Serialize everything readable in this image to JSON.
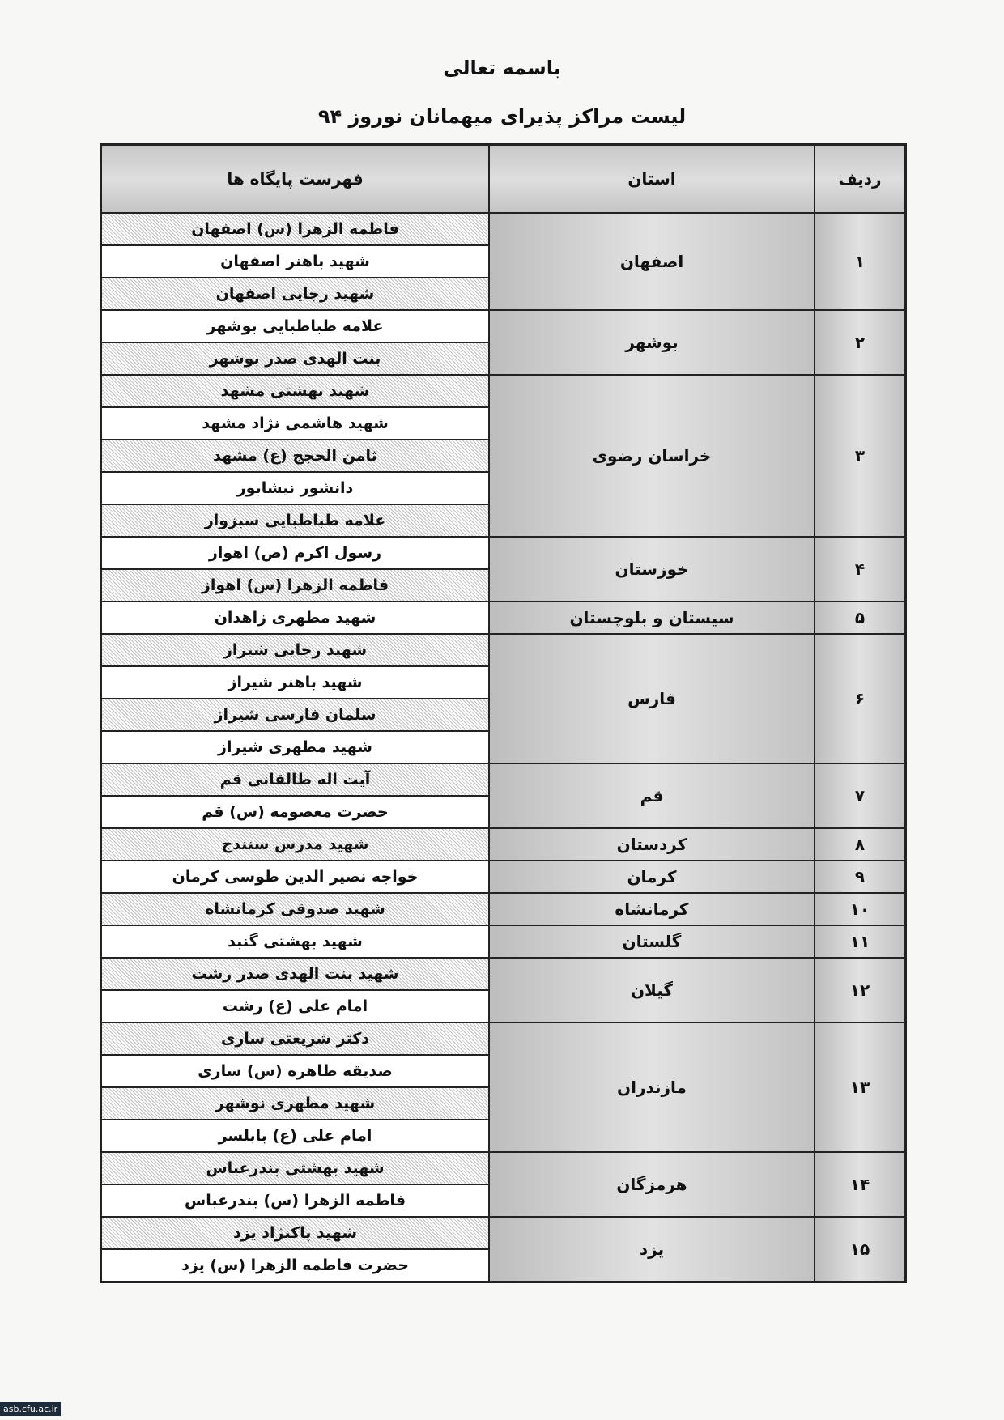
{
  "header": {
    "bismillah": "باسمه تعالی",
    "title": "لیست مراکز پذیرای میهمانان نوروز ۹۴"
  },
  "table": {
    "columns": {
      "radif": "ردیف",
      "province": "استان",
      "sites": "فهرست پایگاه ها"
    },
    "groups": [
      {
        "radif": "۱",
        "province": "اصفهان",
        "sites": [
          {
            "name": "فاطمه الزهرا (س) اصفهان",
            "shaded": true
          },
          {
            "name": "شهید باهنر اصفهان",
            "shaded": false
          },
          {
            "name": "شهید رجایی اصفهان",
            "shaded": true
          }
        ]
      },
      {
        "radif": "۲",
        "province": "بوشهر",
        "sites": [
          {
            "name": "علامه طباطبایی بوشهر",
            "shaded": false
          },
          {
            "name": "بنت الهدی صدر بوشهر",
            "shaded": true
          }
        ]
      },
      {
        "radif": "۳",
        "province": "خراسان رضوی",
        "sites": [
          {
            "name": "شهید بهشتی مشهد",
            "shaded": true
          },
          {
            "name": "شهید هاشمی نژاد مشهد",
            "shaded": false
          },
          {
            "name": "ثامن الحجج (ع) مشهد",
            "shaded": true
          },
          {
            "name": "دانشور نیشابور",
            "shaded": false
          },
          {
            "name": "علامه طباطبایی سبزوار",
            "shaded": true
          }
        ]
      },
      {
        "radif": "۴",
        "province": "خوزستان",
        "sites": [
          {
            "name": "رسول اکرم (ص) اهواز",
            "shaded": false
          },
          {
            "name": "فاطمه الزهرا (س) اهواز",
            "shaded": true
          }
        ]
      },
      {
        "radif": "۵",
        "province": "سیستان و بلوچستان",
        "sites": [
          {
            "name": "شهید مطهری زاهدان",
            "shaded": false
          }
        ]
      },
      {
        "radif": "۶",
        "province": "فارس",
        "sites": [
          {
            "name": "شهید رجایی شیراز",
            "shaded": true
          },
          {
            "name": "شهید باهنر شیراز",
            "shaded": false
          },
          {
            "name": "سلمان فارسی شیراز",
            "shaded": true
          },
          {
            "name": "شهید مطهری شیراز",
            "shaded": false
          }
        ]
      },
      {
        "radif": "۷",
        "province": "قم",
        "sites": [
          {
            "name": "آیت اله طالقانی قم",
            "shaded": true
          },
          {
            "name": "حضرت معصومه (س) قم",
            "shaded": false
          }
        ]
      },
      {
        "radif": "۸",
        "province": "کردستان",
        "sites": [
          {
            "name": "شهید مدرس سنندج",
            "shaded": true
          }
        ]
      },
      {
        "radif": "۹",
        "province": "کرمان",
        "sites": [
          {
            "name": "خواجه نصیر الدین طوسی کرمان",
            "shaded": false
          }
        ]
      },
      {
        "radif": "۱۰",
        "province": "کرمانشاه",
        "sites": [
          {
            "name": "شهید صدوقی کرمانشاه",
            "shaded": true
          }
        ]
      },
      {
        "radif": "۱۱",
        "province": "گلستان",
        "sites": [
          {
            "name": "شهید بهشتی گنبد",
            "shaded": false
          }
        ]
      },
      {
        "radif": "۱۲",
        "province": "گیلان",
        "sites": [
          {
            "name": "شهید بنت الهدی صدر رشت",
            "shaded": true
          },
          {
            "name": "امام علی (ع) رشت",
            "shaded": false
          }
        ]
      },
      {
        "radif": "۱۳",
        "province": "مازندران",
        "sites": [
          {
            "name": "دکتر شریعتی ساری",
            "shaded": true
          },
          {
            "name": "صدیقه طاهره (س) ساری",
            "shaded": false
          },
          {
            "name": "شهید مطهری نوشهر",
            "shaded": true
          },
          {
            "name": "امام علی (ع) بابلسر",
            "shaded": false
          }
        ]
      },
      {
        "radif": "۱۴",
        "province": "هرمزگان",
        "sites": [
          {
            "name": "شهید بهشتی بندرعباس",
            "shaded": true
          },
          {
            "name": "فاطمه الزهرا (س) بندرعباس",
            "shaded": false
          }
        ]
      },
      {
        "radif": "۱۵",
        "province": "یزد",
        "sites": [
          {
            "name": "شهید پاکنژاد یزد",
            "shaded": true
          },
          {
            "name": "حضرت فاطمه الزهرا (س) یزد",
            "shaded": false
          }
        ]
      }
    ]
  },
  "watermark": "asb.cfu.ac.ir"
}
